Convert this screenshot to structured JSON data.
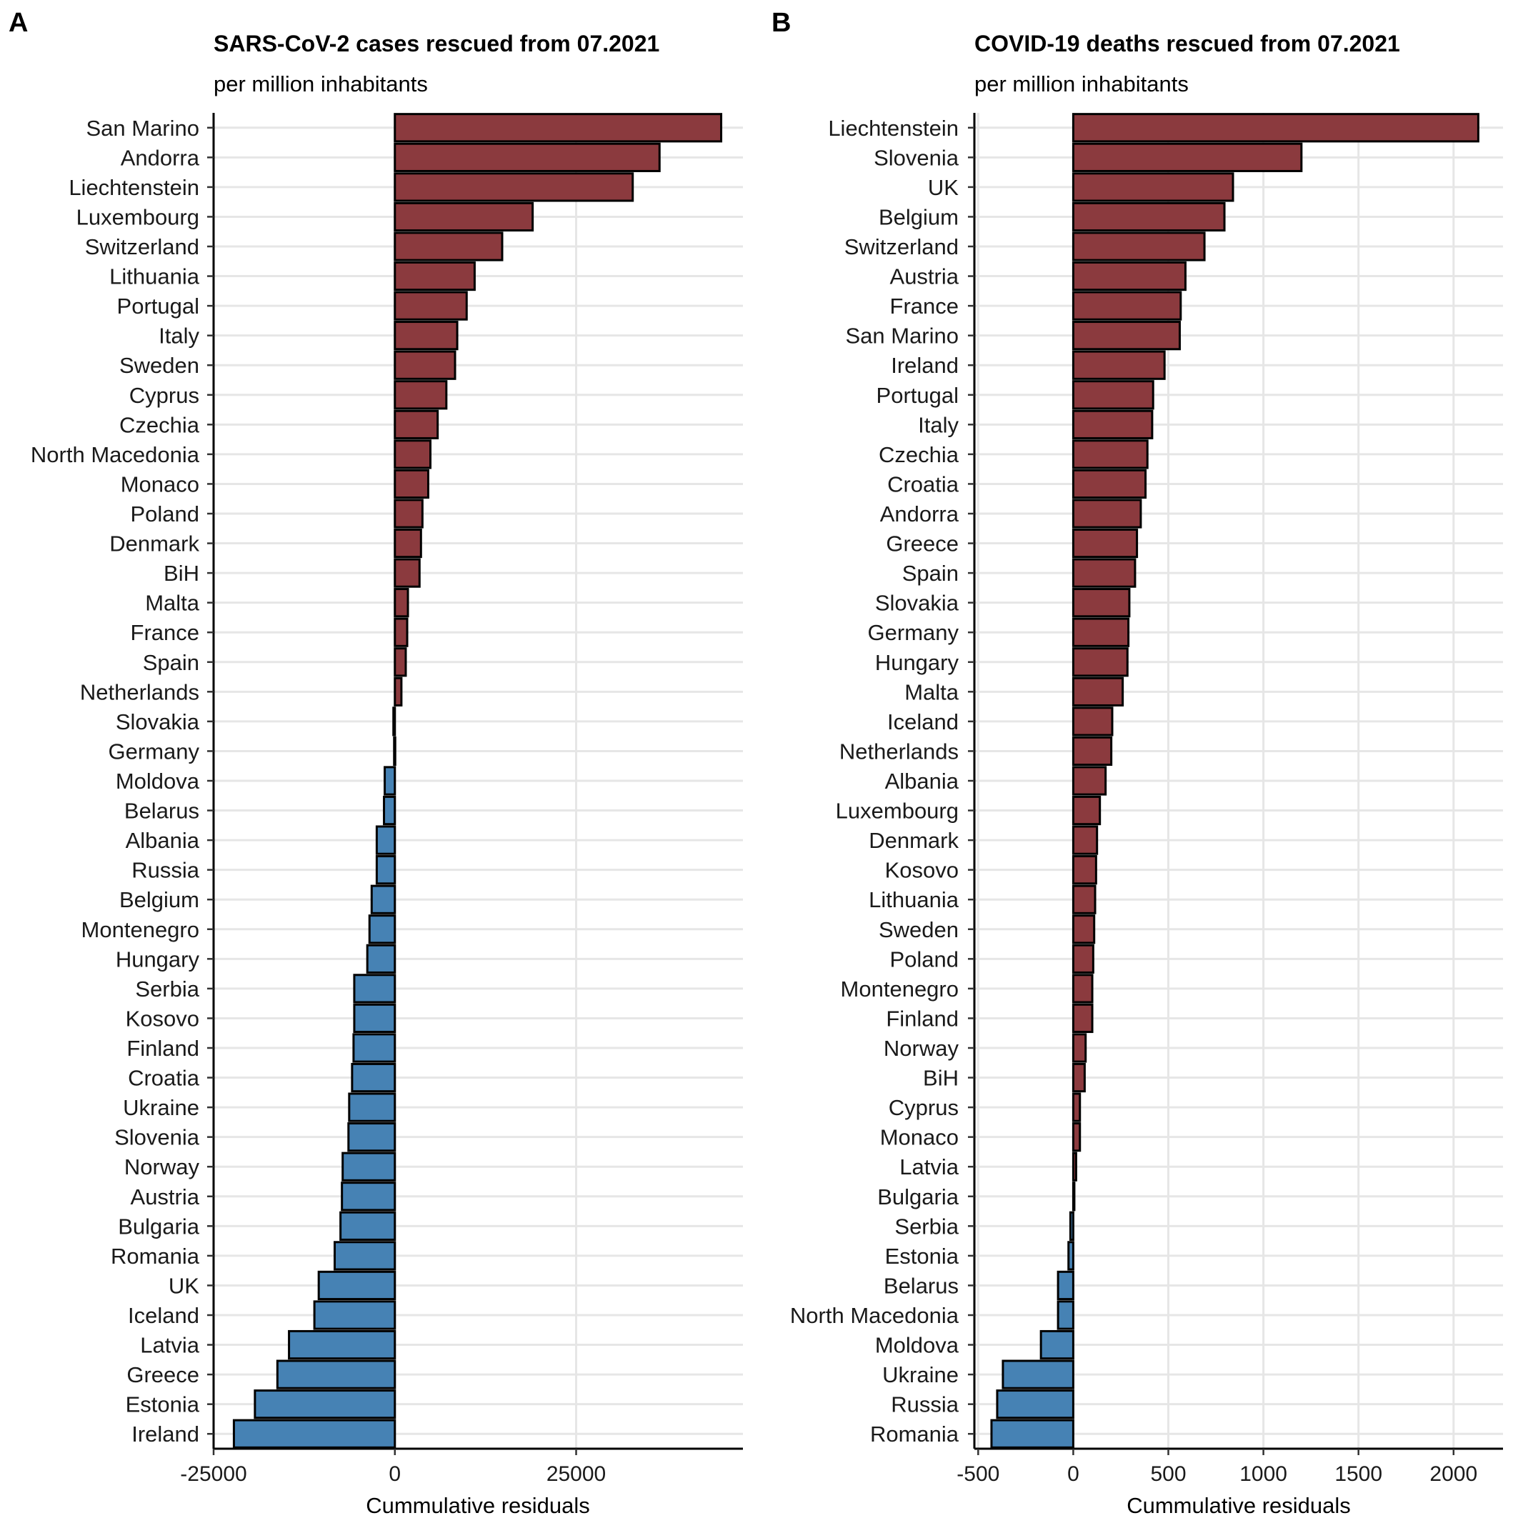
{
  "chart_data": [
    {
      "panel": "A",
      "type": "bar",
      "orientation": "horizontal",
      "title": "SARS-CoV-2 cases rescued from 07.2021",
      "subtitle": "per million inhabitants",
      "xlabel": "Cummulative residuals",
      "ylabel": "",
      "xlim": [
        -25000,
        48000
      ],
      "xticks": [
        -25000,
        0,
        25000
      ],
      "tick_labels": [
        "-25000",
        "0",
        "25000"
      ],
      "grid": true,
      "colors": {
        "positive": "#8B3A3E",
        "negative": "#4682B4"
      },
      "categories": [
        "San Marino",
        "Andorra",
        "Liechtenstein",
        "Luxembourg",
        "Switzerland",
        "Lithuania",
        "Portugal",
        "Italy",
        "Sweden",
        "Cyprus",
        "Czechia",
        "North Macedonia",
        "Monaco",
        "Poland",
        "Denmark",
        "BiH",
        "Malta",
        "France",
        "Spain",
        "Netherlands",
        "Slovakia",
        "Germany",
        "Moldova",
        "Belarus",
        "Albania",
        "Russia",
        "Belgium",
        "Montenegro",
        "Hungary",
        "Serbia",
        "Kosovo",
        "Finland",
        "Croatia",
        "Ukraine",
        "Slovenia",
        "Norway",
        "Austria",
        "Bulgaria",
        "Romania",
        "UK",
        "Iceland",
        "Latvia",
        "Greece",
        "Estonia",
        "Ireland"
      ],
      "values": [
        45000,
        36500,
        32800,
        19000,
        14800,
        11000,
        9900,
        8600,
        8300,
        7100,
        5900,
        4900,
        4600,
        3800,
        3600,
        3400,
        1800,
        1700,
        1500,
        900,
        -200,
        -100,
        -1400,
        -1500,
        -2500,
        -2500,
        -3200,
        -3500,
        -3800,
        -5600,
        -5600,
        -5700,
        -5900,
        -6300,
        -6400,
        -7200,
        -7300,
        -7500,
        -8300,
        -10500,
        -11100,
        -14600,
        -16200,
        -19300,
        -22200
      ]
    },
    {
      "panel": "B",
      "type": "bar",
      "orientation": "horizontal",
      "title": "COVID-19 deaths rescued from 07.2021",
      "subtitle": "per million inhabitants",
      "xlabel": "Cummulative residuals",
      "ylabel": "",
      "xlim": [
        -520,
        2260
      ],
      "xticks": [
        -500,
        0,
        500,
        1000,
        1500,
        2000
      ],
      "tick_labels": [
        "-500",
        "0",
        "500",
        "1000",
        "1500",
        "2000"
      ],
      "grid": true,
      "colors": {
        "positive": "#8B3A3E",
        "negative": "#4682B4"
      },
      "categories": [
        "Liechtenstein",
        "Slovenia",
        "UK",
        "Belgium",
        "Switzerland",
        "Austria",
        "France",
        "San Marino",
        "Ireland",
        "Portugal",
        "Italy",
        "Czechia",
        "Croatia",
        "Andorra",
        "Greece",
        "Spain",
        "Slovakia",
        "Germany",
        "Hungary",
        "Malta",
        "Iceland",
        "Netherlands",
        "Albania",
        "Luxembourg",
        "Denmark",
        "Kosovo",
        "Lithuania",
        "Sweden",
        "Poland",
        "Montenegro",
        "Finland",
        "Norway",
        "BiH",
        "Cyprus",
        "Monaco",
        "Latvia",
        "Bulgaria",
        "Serbia",
        "Estonia",
        "Belarus",
        "North Macedonia",
        "Moldova",
        "Ukraine",
        "Russia",
        "Romania"
      ],
      "values": [
        2130,
        1200,
        840,
        795,
        690,
        590,
        565,
        560,
        480,
        420,
        415,
        390,
        380,
        355,
        335,
        325,
        295,
        290,
        285,
        260,
        205,
        200,
        170,
        140,
        125,
        120,
        115,
        110,
        105,
        100,
        100,
        65,
        60,
        35,
        35,
        15,
        5,
        -15,
        -25,
        -80,
        -80,
        -170,
        -370,
        -400,
        -430
      ]
    }
  ]
}
